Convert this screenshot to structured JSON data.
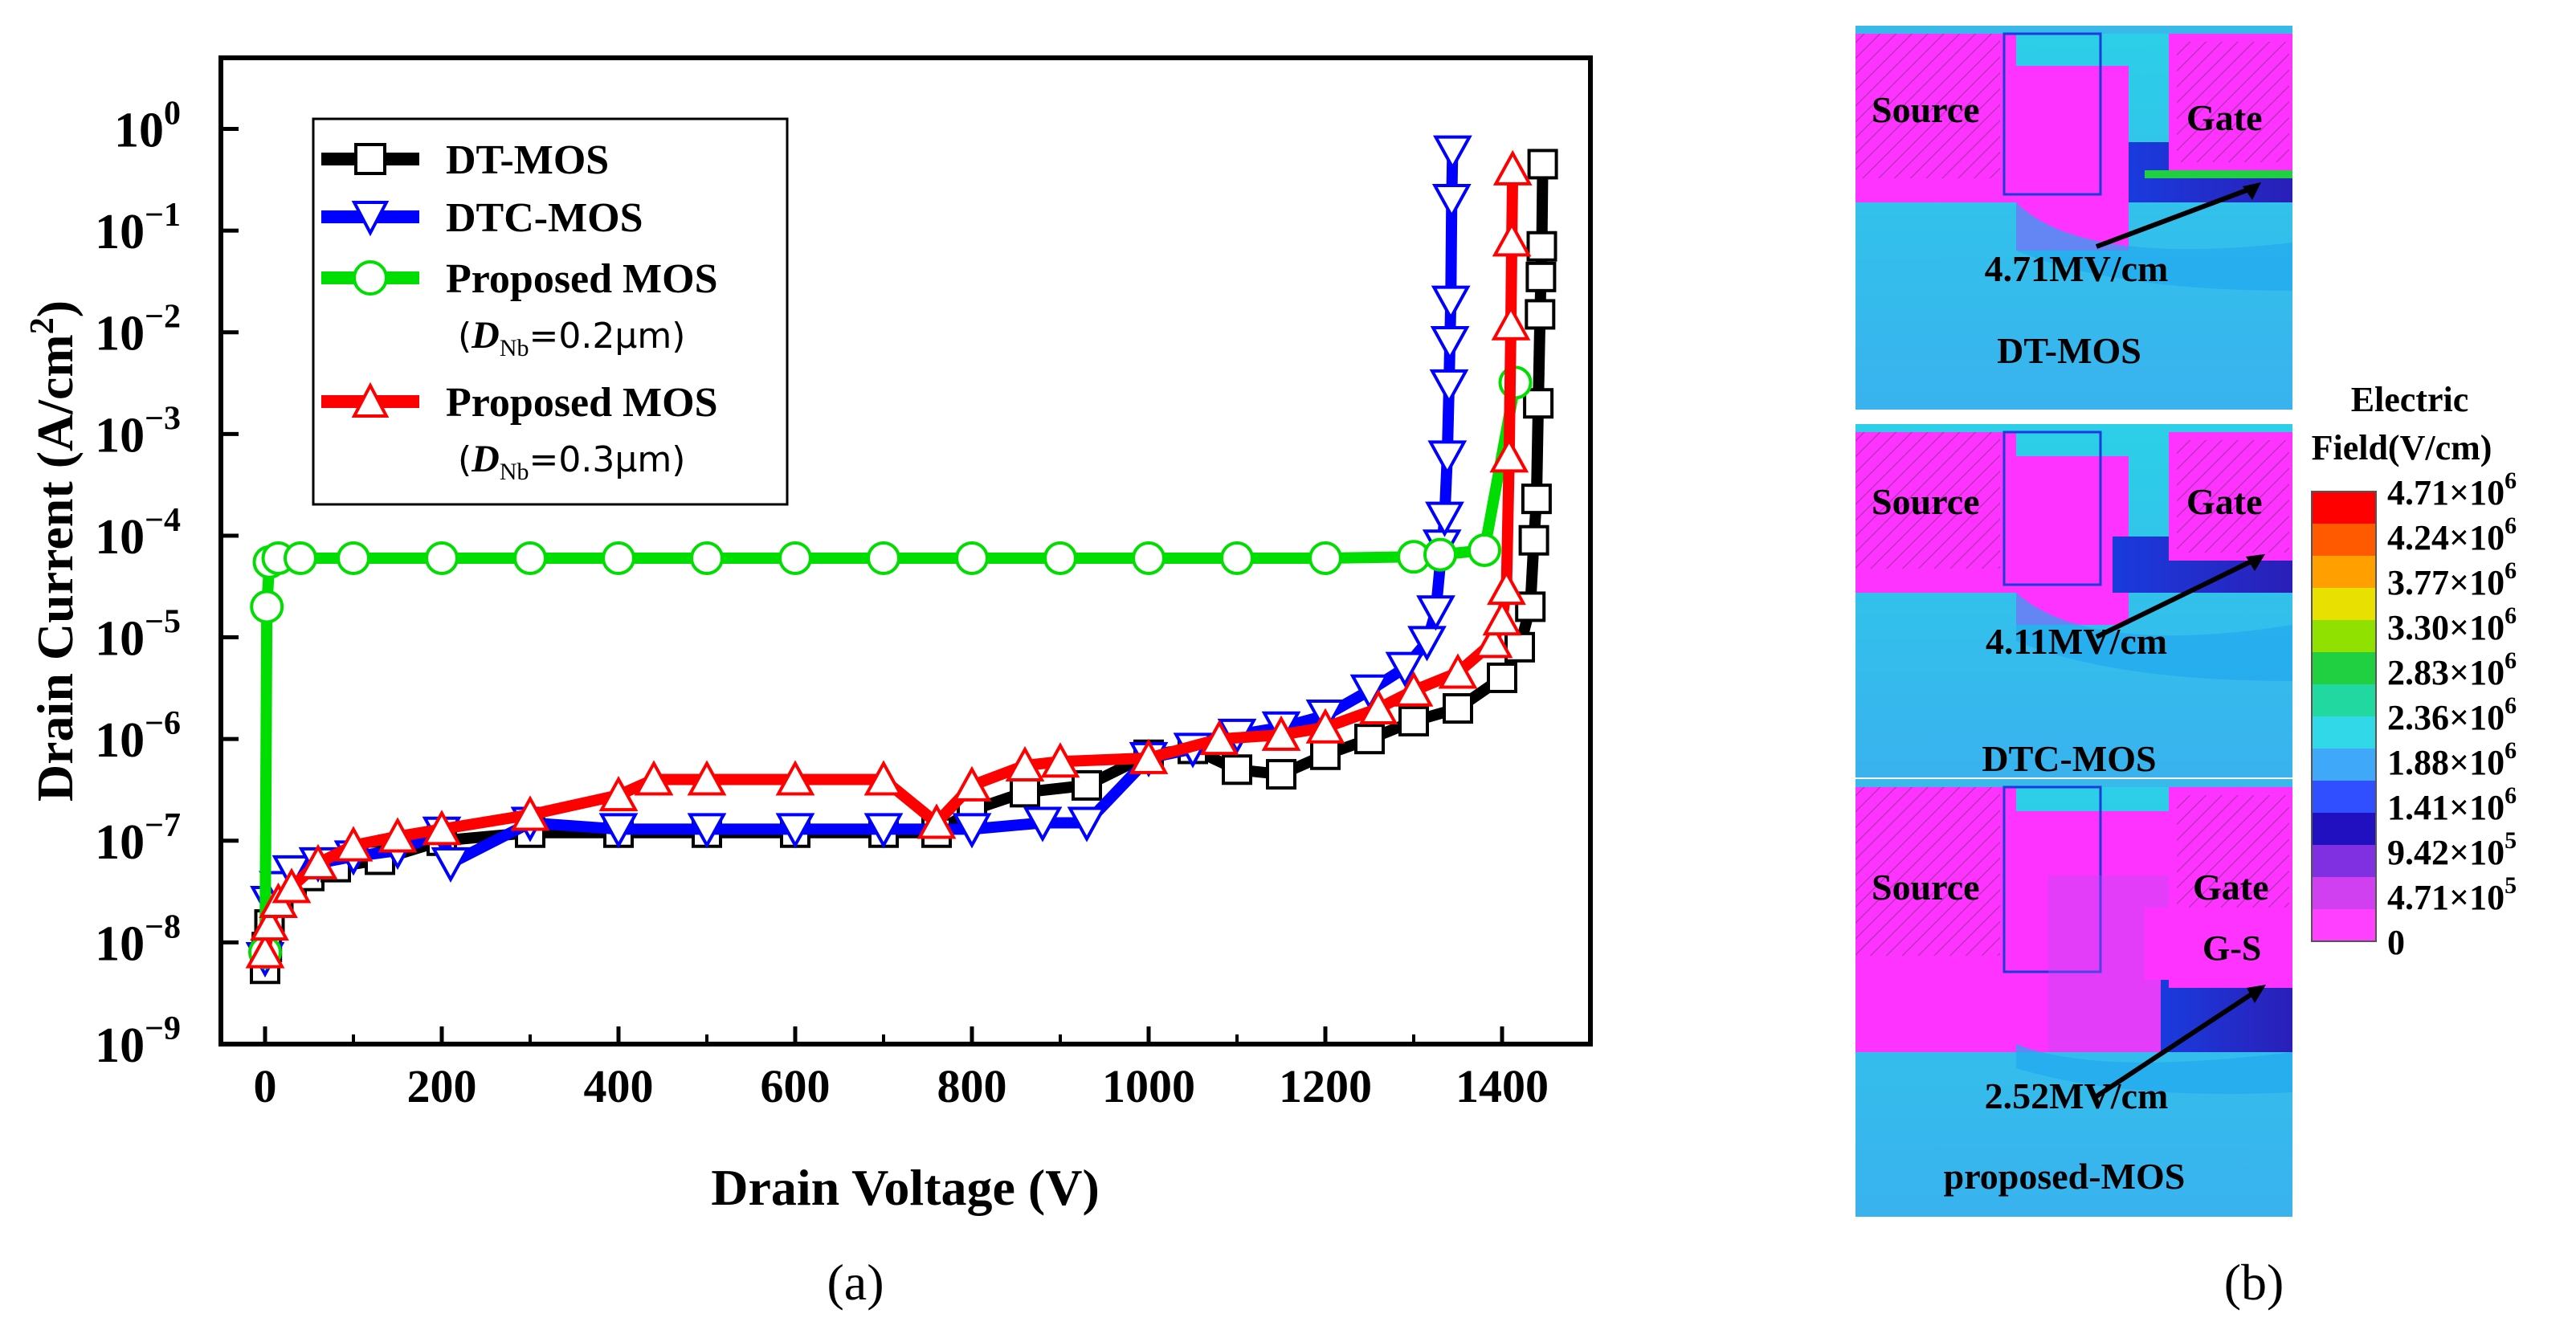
{
  "panel_a": {
    "caption": "(a)",
    "chart_data": {
      "type": "scatter",
      "title": "",
      "xlabel": "Drain Voltage (V)",
      "ylabel": "Drain Current (A/cm²)",
      "yscale": "log",
      "xlim": [
        -50,
        1500
      ],
      "ylim": [
        1e-09,
        5
      ],
      "x_ticks": [
        0,
        200,
        400,
        600,
        800,
        1000,
        1200,
        1400
      ],
      "y_tick_exponents": [
        0,
        -1,
        -2,
        -3,
        -4,
        -5,
        -6,
        -7,
        -8,
        -9
      ],
      "legend_position": "top-left",
      "series": [
        {
          "name": "DT-MOS",
          "marker": "square",
          "color": "#000000",
          "points": [
            [
              0,
              5.5e-09
            ],
            [
              2,
              9e-09
            ],
            [
              5,
              1.5e-08
            ],
            [
              15,
              2.5e-08
            ],
            [
              30,
              3.5e-08
            ],
            [
              50,
              4.5e-08
            ],
            [
              80,
              5.5e-08
            ],
            [
              130,
              6.5e-08
            ],
            [
              200,
              1e-07
            ],
            [
              300,
              1.2e-07
            ],
            [
              400,
              1.2e-07
            ],
            [
              500,
              1.2e-07
            ],
            [
              600,
              1.2e-07
            ],
            [
              700,
              1.2e-07
            ],
            [
              760,
              1.2e-07
            ],
            [
              800,
              2e-07
            ],
            [
              860,
              3e-07
            ],
            [
              930,
              3.5e-07
            ],
            [
              1000,
              7e-07
            ],
            [
              1050,
              8e-07
            ],
            [
              1100,
              5e-07
            ],
            [
              1150,
              4.5e-07
            ],
            [
              1200,
              7e-07
            ],
            [
              1250,
              1e-06
            ],
            [
              1300,
              1.5e-06
            ],
            [
              1350,
              2e-06
            ],
            [
              1400,
              4e-06
            ],
            [
              1420,
              8e-06
            ],
            [
              1432,
              2e-05
            ],
            [
              1436,
              9e-05
            ],
            [
              1439,
              0.00023
            ],
            [
              1441,
              0.002
            ],
            [
              1443,
              0.015
            ],
            [
              1444,
              0.035
            ],
            [
              1445,
              0.07
            ],
            [
              1446,
              0.45
            ]
          ]
        },
        {
          "name": "DTC-MOS",
          "marker": "down-triangle",
          "color": "#0000ff",
          "points": [
            [
              0,
              7e-09
            ],
            [
              5,
              2.5e-08
            ],
            [
              15,
              3.5e-08
            ],
            [
              30,
              5e-08
            ],
            [
              60,
              6e-08
            ],
            [
              100,
              7e-08
            ],
            [
              150,
              8e-08
            ],
            [
              200,
              1.2e-07
            ],
            [
              210,
              6e-08
            ],
            [
              300,
              1.5e-07
            ],
            [
              400,
              1.3e-07
            ],
            [
              500,
              1.3e-07
            ],
            [
              600,
              1.3e-07
            ],
            [
              700,
              1.3e-07
            ],
            [
              800,
              1.3e-07
            ],
            [
              880,
              1.5e-07
            ],
            [
              930,
              1.5e-07
            ],
            [
              1000,
              6.5e-07
            ],
            [
              1050,
              8e-07
            ],
            [
              1100,
              1.1e-06
            ],
            [
              1150,
              1.3e-06
            ],
            [
              1200,
              1.7e-06
            ],
            [
              1250,
              3e-06
            ],
            [
              1290,
              5e-06
            ],
            [
              1315,
              9e-06
            ],
            [
              1325,
              1.8e-05
            ],
            [
              1332,
              8e-05
            ],
            [
              1335,
              0.00015
            ],
            [
              1338,
              0.0006
            ],
            [
              1340,
              0.003
            ],
            [
              1341,
              0.008
            ],
            [
              1342,
              0.02
            ],
            [
              1343,
              0.2
            ],
            [
              1344,
              0.6
            ]
          ]
        },
        {
          "name": "Proposed MOS",
          "sub_label": "(D_Nb=0.2μm)",
          "marker": "circle",
          "color": "#00dd00",
          "points": [
            [
              0,
              8e-09
            ],
            [
              2,
              2e-05
            ],
            [
              5,
              5.5e-05
            ],
            [
              15,
              6e-05
            ],
            [
              40,
              6e-05
            ],
            [
              100,
              6e-05
            ],
            [
              200,
              6e-05
            ],
            [
              300,
              6e-05
            ],
            [
              400,
              6e-05
            ],
            [
              500,
              6e-05
            ],
            [
              600,
              6e-05
            ],
            [
              700,
              6e-05
            ],
            [
              800,
              6e-05
            ],
            [
              900,
              6e-05
            ],
            [
              1000,
              6e-05
            ],
            [
              1100,
              6e-05
            ],
            [
              1200,
              6e-05
            ],
            [
              1300,
              6.2e-05
            ],
            [
              1330,
              6.5e-05
            ],
            [
              1380,
              7.2e-05
            ],
            [
              1415,
              0.0032
            ]
          ]
        },
        {
          "name": "Proposed MOS",
          "sub_label": "(D_Nb=0.3μm)",
          "marker": "up-triangle",
          "color": "#ff0000",
          "points": [
            [
              0,
              8e-09
            ],
            [
              5,
              1.5e-08
            ],
            [
              15,
              2.5e-08
            ],
            [
              30,
              3.5e-08
            ],
            [
              60,
              6e-08
            ],
            [
              100,
              9e-08
            ],
            [
              150,
              1.1e-07
            ],
            [
              200,
              1.3e-07
            ],
            [
              300,
              1.8e-07
            ],
            [
              400,
              2.8e-07
            ],
            [
              440,
              4e-07
            ],
            [
              500,
              4e-07
            ],
            [
              600,
              4e-07
            ],
            [
              700,
              4e-07
            ],
            [
              760,
              1.5e-07
            ],
            [
              800,
              3.5e-07
            ],
            [
              860,
              5.5e-07
            ],
            [
              900,
              6e-07
            ],
            [
              1000,
              6.5e-07
            ],
            [
              1080,
              1e-06
            ],
            [
              1150,
              1.1e-06
            ],
            [
              1200,
              1.3e-06
            ],
            [
              1260,
              2e-06
            ],
            [
              1300,
              3e-06
            ],
            [
              1350,
              4.5e-06
            ],
            [
              1390,
              9e-06
            ],
            [
              1400,
              1.5e-05
            ],
            [
              1405,
              3e-05
            ],
            [
              1408,
              0.0006
            ],
            [
              1410,
              0.012
            ],
            [
              1411,
              0.08
            ],
            [
              1412,
              0.4
            ]
          ]
        }
      ]
    },
    "legend": {
      "entries": [
        "DT-MOS",
        "DTC-MOS",
        "Proposed MOS",
        "Proposed MOS"
      ],
      "sub1": {
        "open": "(",
        "var": "D",
        "sub": "Nb",
        "rest": "=0.2μm)"
      },
      "sub2": {
        "open": "(",
        "var": "D",
        "sub": "Nb",
        "rest": "=0.3μm)"
      }
    },
    "ylabel_parts": {
      "main": "Drain Current (A/cm",
      "sup": "2",
      "close": ")"
    },
    "tick_base": "10"
  },
  "panel_b": {
    "caption": "(b)",
    "colors": {
      "magenta": "#ff33ff",
      "cyan": "#33ccee",
      "blue": "#1a3bdd"
    },
    "maps": [
      {
        "device_label": "DT-MOS",
        "field_label": "4.71MV/cm",
        "source_label": "Source",
        "gate_label": "Gate",
        "extra_label": ""
      },
      {
        "device_label": "DTC-MOS",
        "field_label": "4.11MV/cm",
        "source_label": "Source",
        "gate_label": "Gate",
        "extra_label": ""
      },
      {
        "device_label": "proposed-MOS",
        "field_label": "2.52MV/cm",
        "source_label": "Source",
        "gate_label": "Gate",
        "extra_label": "G-S"
      }
    ],
    "colorbar": {
      "title_line1": "Electric",
      "title_line2": "Field(V/cm)",
      "labels": [
        {
          "mant": "4.71×10",
          "exp": "6"
        },
        {
          "mant": "4.24×10",
          "exp": "6"
        },
        {
          "mant": "3.77×10",
          "exp": "6"
        },
        {
          "mant": "3.30×10",
          "exp": "6"
        },
        {
          "mant": "2.83×10",
          "exp": "6"
        },
        {
          "mant": "2.36×10",
          "exp": "6"
        },
        {
          "mant": "1.88×10",
          "exp": "6"
        },
        {
          "mant": "1.41×10",
          "exp": "6"
        },
        {
          "mant": "9.42×10",
          "exp": "5"
        },
        {
          "mant": "4.71×10",
          "exp": "5"
        },
        {
          "mant": "0",
          "exp": ""
        }
      ],
      "colors": [
        "#ff0000",
        "#ff5a00",
        "#ffa000",
        "#e8e000",
        "#90e000",
        "#20d040",
        "#20d8a0",
        "#30d8e8",
        "#40a8f8",
        "#3050ff",
        "#2010c0",
        "#8030e0",
        "#d040f0",
        "#ff40ff"
      ]
    }
  }
}
